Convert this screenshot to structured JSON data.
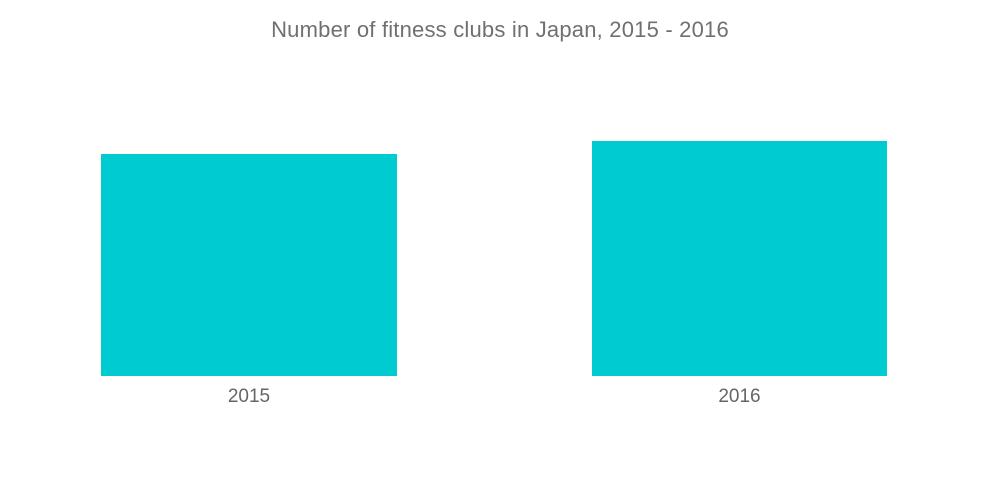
{
  "page": {
    "background": "#ffffff"
  },
  "chart_data": {
    "type": "bar",
    "title": "Number of fitness clubs in Japan, 2015 - 2016",
    "categories": [
      "2015",
      "2016"
    ],
    "values": [
      222,
      235
    ],
    "values_unit": "relative bar height in px (chart shows no y-axis, gridlines, or value labels)",
    "xlabel": "",
    "ylabel": "",
    "axes_visible": false,
    "grid": false,
    "legend": false,
    "bar_color": "#00cbd1",
    "title_color": "#6e7073",
    "label_color": "#636669"
  }
}
